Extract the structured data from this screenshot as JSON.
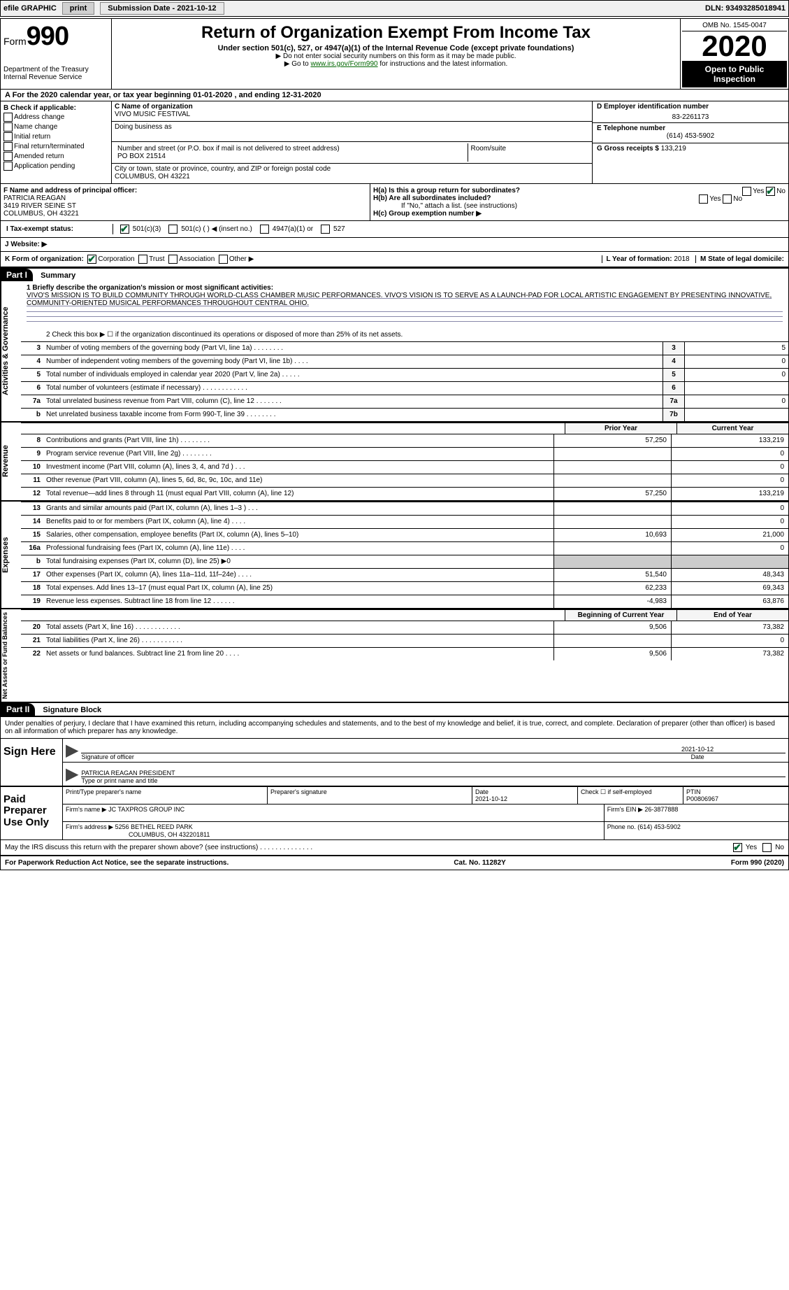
{
  "topbar": {
    "efile": "efile GRAPHIC",
    "print": "print",
    "submission_label": "Submission Date - ",
    "submission_date": "2021-10-12",
    "dln_label": "DLN: ",
    "dln": "93493285018941"
  },
  "header": {
    "form_label": "Form",
    "form_number": "990",
    "title": "Return of Organization Exempt From Income Tax",
    "subtitle": "Under section 501(c), 527, or 4947(a)(1) of the Internal Revenue Code (except private foundations)",
    "note1": "▶ Do not enter social security numbers on this form as it may be made public.",
    "note2_prefix": "▶ Go to ",
    "note2_link": "www.irs.gov/Form990",
    "note2_suffix": " for instructions and the latest information.",
    "dept": "Department of the Treasury",
    "irs": "Internal Revenue Service",
    "omb": "OMB No. 1545-0047",
    "year": "2020",
    "open": "Open to Public Inspection"
  },
  "period": {
    "text_a": "A For the 2020 calendar year, or tax year beginning ",
    "begin": "01-01-2020",
    "text_b": " , and ending ",
    "end": "12-31-2020"
  },
  "section_b": {
    "label": "B Check if applicable:",
    "opts": [
      "Address change",
      "Name change",
      "Initial return",
      "Final return/terminated",
      "Amended return",
      "Application pending"
    ]
  },
  "section_c": {
    "name_label": "C Name of organization",
    "name": "VIVO MUSIC FESTIVAL",
    "dba_label": "Doing business as",
    "dba": "",
    "addr_label": "Number and street (or P.O. box if mail is not delivered to street address)",
    "room_label": "Room/suite",
    "addr": "PO BOX 21514",
    "city_label": "City or town, state or province, country, and ZIP or foreign postal code",
    "city": "COLUMBUS, OH  43221"
  },
  "section_d": {
    "ein_label": "D Employer identification number",
    "ein": "83-2261173",
    "phone_label": "E Telephone number",
    "phone": "(614) 453-5902",
    "gross_label": "G Gross receipts $ ",
    "gross": "133,219"
  },
  "section_f": {
    "label": "F  Name and address of principal officer:",
    "name": "PATRICIA REAGAN",
    "addr1": "3419 RIVER SEINE ST",
    "addr2": "COLUMBUS, OH  43221"
  },
  "section_h": {
    "ha": "H(a)  Is this a group return for subordinates?",
    "hb": "H(b)  Are all subordinates included?",
    "hb_note": "If \"No,\" attach a list. (see instructions)",
    "hc": "H(c)  Group exemption number ▶",
    "yes": "Yes",
    "no": "No"
  },
  "section_i": {
    "label": "I  Tax-exempt status:",
    "opts": [
      "501(c)(3)",
      "501(c) (  ) ◀ (insert no.)",
      "4947(a)(1) or",
      "527"
    ]
  },
  "section_j": {
    "label": "J  Website: ▶",
    "value": ""
  },
  "section_k": {
    "label": "K Form of organization:",
    "opts": [
      "Corporation",
      "Trust",
      "Association",
      "Other ▶"
    ]
  },
  "section_l": {
    "label": "L Year of formation: ",
    "value": "2018"
  },
  "section_m": {
    "label": "M State of legal domicile:",
    "value": ""
  },
  "part1": {
    "header": "Part I",
    "title": "Summary",
    "line1_label": "1  Briefly describe the organization's mission or most significant activities:",
    "mission": "VIVO'S MISSION IS TO BUILD COMMUNITY THROUGH WORLD-CLASS CHAMBER MUSIC PERFORMANCES. VIVO'S VISION IS TO SERVE AS A LAUNCH-PAD FOR LOCAL ARTISTIC ENGAGEMENT BY PRESENTING INNOVATIVE, COMMUNITY-ORIENTED MUSICAL PERFORMANCES THROUGHOUT CENTRAL OHIO.",
    "line2": "2  Check this box ▶ ☐ if the organization discontinued its operations or disposed of more than 25% of its net assets.",
    "governance_tab": "Activities & Governance",
    "revenue_tab": "Revenue",
    "expenses_tab": "Expenses",
    "netassets_tab": "Net Assets or Fund Balances",
    "lines_simple": [
      {
        "n": "3",
        "desc": "Number of voting members of the governing body (Part VI, line 1a)  .    .    .    .    .    .    .    .",
        "box": "3",
        "val": "5"
      },
      {
        "n": "4",
        "desc": "Number of independent voting members of the governing body (Part VI, line 1b)  .    .    .    .",
        "box": "4",
        "val": "0"
      },
      {
        "n": "5",
        "desc": "Total number of individuals employed in calendar year 2020 (Part V, line 2a)  .    .    .    .    .",
        "box": "5",
        "val": "0"
      },
      {
        "n": "6",
        "desc": "Total number of volunteers (estimate if necessary)  .    .    .    .    .    .    .    .    .    .    .    .",
        "box": "6",
        "val": ""
      },
      {
        "n": "7a",
        "desc": "Total unrelated business revenue from Part VIII, column (C), line 12  .    .    .    .    .    .    .",
        "box": "7a",
        "val": "0"
      },
      {
        "n": "b",
        "desc": "Net unrelated business taxable income from Form 990-T, line 39  .    .    .    .    .    .    .    .",
        "box": "7b",
        "val": ""
      }
    ],
    "col_prior": "Prior Year",
    "col_current": "Current Year",
    "revenue_lines": [
      {
        "n": "8",
        "desc": "Contributions and grants (Part VIII, line 1h)  .    .    .    .    .    .    .    .",
        "prior": "57,250",
        "curr": "133,219"
      },
      {
        "n": "9",
        "desc": "Program service revenue (Part VIII, line 2g)  .    .    .    .    .    .    .    .",
        "prior": "",
        "curr": "0"
      },
      {
        "n": "10",
        "desc": "Investment income (Part VIII, column (A), lines 3, 4, and 7d )  .    .    .",
        "prior": "",
        "curr": "0"
      },
      {
        "n": "11",
        "desc": "Other revenue (Part VIII, column (A), lines 5, 6d, 8c, 9c, 10c, and 11e)",
        "prior": "",
        "curr": "0"
      },
      {
        "n": "12",
        "desc": "Total revenue—add lines 8 through 11 (must equal Part VIII, column (A), line 12)",
        "prior": "57,250",
        "curr": "133,219"
      }
    ],
    "expense_lines": [
      {
        "n": "13",
        "desc": "Grants and similar amounts paid (Part IX, column (A), lines 1–3 )  .    .    .",
        "prior": "",
        "curr": "0"
      },
      {
        "n": "14",
        "desc": "Benefits paid to or for members (Part IX, column (A), line 4)  .    .    .    .",
        "prior": "",
        "curr": "0"
      },
      {
        "n": "15",
        "desc": "Salaries, other compensation, employee benefits (Part IX, column (A), lines 5–10)",
        "prior": "10,693",
        "curr": "21,000"
      },
      {
        "n": "16a",
        "desc": "Professional fundraising fees (Part IX, column (A), line 11e)  .    .    .    .",
        "prior": "",
        "curr": "0"
      },
      {
        "n": "b",
        "desc": "Total fundraising expenses (Part IX, column (D), line 25) ▶0",
        "prior": "-",
        "curr": "-"
      },
      {
        "n": "17",
        "desc": "Other expenses (Part IX, column (A), lines 11a–11d, 11f–24e)  .    .    .    .",
        "prior": "51,540",
        "curr": "48,343"
      },
      {
        "n": "18",
        "desc": "Total expenses. Add lines 13–17 (must equal Part IX, column (A), line 25)",
        "prior": "62,233",
        "curr": "69,343"
      },
      {
        "n": "19",
        "desc": "Revenue less expenses. Subtract line 18 from line 12  .    .    .    .    .    .",
        "prior": "-4,983",
        "curr": "63,876"
      }
    ],
    "col_begin": "Beginning of Current Year",
    "col_end": "End of Year",
    "netasset_lines": [
      {
        "n": "20",
        "desc": "Total assets (Part X, line 16)  .    .    .    .    .    .    .    .    .    .    .    .",
        "prior": "9,506",
        "curr": "73,382"
      },
      {
        "n": "21",
        "desc": "Total liabilities (Part X, line 26)  .    .    .    .    .    .    .    .    .    .    .",
        "prior": "",
        "curr": "0"
      },
      {
        "n": "22",
        "desc": "Net assets or fund balances. Subtract line 21 from line 20  .    .    .    .",
        "prior": "9,506",
        "curr": "73,382"
      }
    ]
  },
  "part2": {
    "header": "Part II",
    "title": "Signature Block",
    "declare": "Under penalties of perjury, I declare that I have examined this return, including accompanying schedules and statements, and to the best of my knowledge and belief, it is true, correct, and complete. Declaration of preparer (other than officer) is based on all information of which preparer has any knowledge.",
    "sign_here": "Sign Here",
    "sig_officer": "Signature of officer",
    "sig_date_label": "Date",
    "sig_date": "2021-10-12",
    "officer_name": "PATRICIA REAGAN  PRESIDENT",
    "type_name": "Type or print name and title",
    "paid_label": "Paid Preparer Use Only",
    "prep_name_label": "Print/Type preparer's name",
    "prep_sig_label": "Preparer's signature",
    "prep_date_label": "Date",
    "prep_date": "2021-10-12",
    "check_self": "Check ☐ if self-employed",
    "ptin_label": "PTIN",
    "ptin": "P00806967",
    "firm_name_label": "Firm's name    ▶ ",
    "firm_name": "JC TAXPROS GROUP INC",
    "firm_ein_label": "Firm's EIN ▶ ",
    "firm_ein": "26-3877888",
    "firm_addr_label": "Firm's address ▶ ",
    "firm_addr1": "5256 BETHEL REED PARK",
    "firm_addr2": "COLUMBUS, OH  432201811",
    "firm_phone_label": "Phone no. ",
    "firm_phone": "(614) 453-5902",
    "discuss": "May the IRS discuss this return with the preparer shown above? (see instructions)  .    .    .    .    .    .    .    .    .    .    .    .    .    .",
    "discuss_yes": "Yes",
    "discuss_no": "No"
  },
  "footer": {
    "paperwork": "For Paperwork Reduction Act Notice, see the separate instructions.",
    "cat": "Cat. No. 11282Y",
    "form": "Form 990 (2020)"
  }
}
